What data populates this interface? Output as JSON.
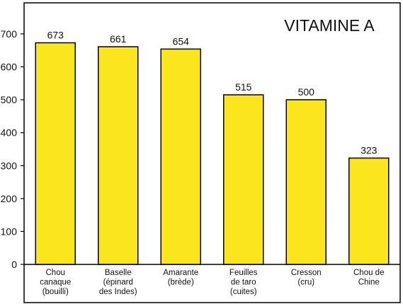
{
  "chart_data": {
    "type": "bar",
    "title": "VITAMINE A",
    "categories": [
      [
        "Chou",
        "canaque",
        "(bouilli)"
      ],
      [
        "Baselle",
        "(épinard",
        "des Indes)"
      ],
      [
        "Amarante",
        "(brède)"
      ],
      [
        "Feuilles",
        "de taro",
        "(cuites)"
      ],
      [
        "Cresson",
        "(cru)"
      ],
      [
        "Chou de",
        "Chine"
      ]
    ],
    "values": [
      673,
      661,
      654,
      515,
      500,
      323
    ],
    "data_labels": [
      "673",
      "661",
      "654",
      "515",
      "500",
      "323"
    ],
    "y_ticks": [
      0,
      100,
      200,
      300,
      400,
      500,
      600,
      700
    ],
    "ylim": [
      0,
      760
    ],
    "grid": false,
    "colors": {
      "bar": "#fbe51d",
      "bar_stroke": "#000000",
      "frame": "#000000"
    }
  }
}
